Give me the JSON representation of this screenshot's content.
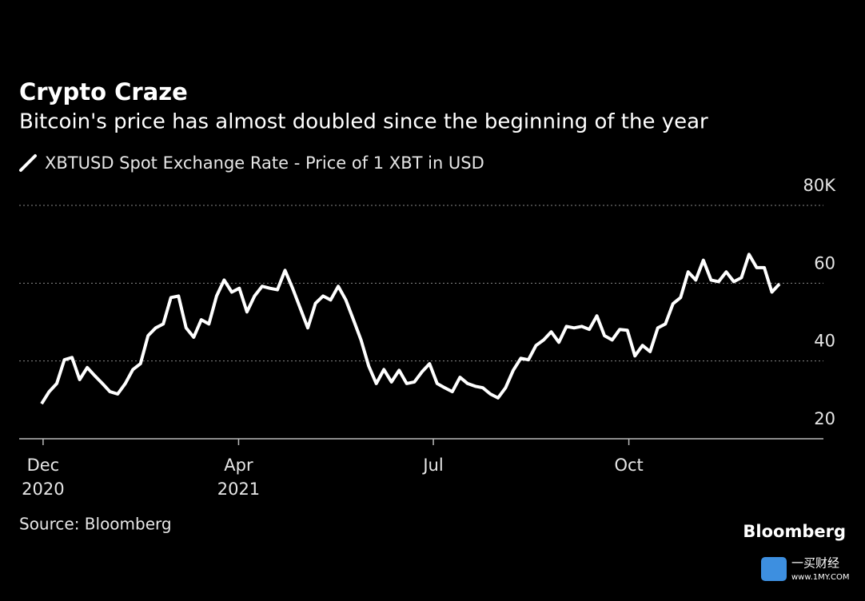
{
  "chart_data": {
    "type": "line",
    "title": "Crypto Craze",
    "subtitle": "Bitcoin's price has almost doubled since the beginning of the year",
    "series": [
      {
        "name": "XBTUSD Spot Exchange Rate - Price of 1 XBT in USD",
        "color": "#ffffff",
        "values": [
          29.0,
          32.1,
          34.2,
          40.3,
          40.9,
          35.2,
          38.3,
          36.2,
          34.2,
          32.1,
          31.5,
          34.2,
          37.8,
          39.3,
          46.5,
          48.5,
          49.5,
          56.3,
          56.7,
          48.5,
          46.1,
          50.6,
          49.5,
          56.7,
          60.8,
          57.7,
          58.7,
          52.6,
          56.7,
          59.2,
          58.7,
          58.3,
          63.3,
          58.7,
          53.6,
          48.5,
          54.8,
          56.7,
          55.7,
          59.2,
          55.7,
          50.6,
          45.4,
          38.7,
          34.2,
          37.8,
          34.6,
          37.6,
          34.2,
          34.6,
          37.2,
          39.3,
          34.2,
          33.1,
          32.1,
          35.8,
          34.2,
          33.5,
          33.1,
          31.5,
          30.5,
          33.1,
          37.6,
          40.7,
          40.3,
          44.0,
          45.4,
          47.5,
          44.8,
          48.9,
          48.5,
          48.9,
          48.1,
          51.6,
          46.5,
          45.4,
          48.1,
          47.9,
          41.3,
          44.0,
          42.4,
          48.5,
          49.5,
          54.7,
          56.3,
          62.9,
          60.8,
          65.9,
          60.8,
          60.4,
          62.9,
          60.4,
          61.4,
          67.4,
          64.0,
          64.0,
          57.7,
          59.8
        ]
      }
    ],
    "ylim": [
      20,
      80
    ],
    "yticks": [
      20,
      40,
      60,
      {
        "value": 80,
        "label": "80K"
      }
    ],
    "xticks": [
      {
        "value": 0.2,
        "label": "Dec",
        "sublabel": "2020"
      },
      {
        "value": 25.9,
        "label": "Apr",
        "sublabel": "2021"
      },
      {
        "value": 51.5,
        "label": "Jul"
      },
      {
        "value": 77.2,
        "label": "Oct"
      }
    ],
    "grid": true,
    "source": "Source: Bloomberg",
    "brand": "Bloomberg",
    "watermark": {
      "name": "一买财经",
      "url": "www.1MY.COM"
    }
  }
}
